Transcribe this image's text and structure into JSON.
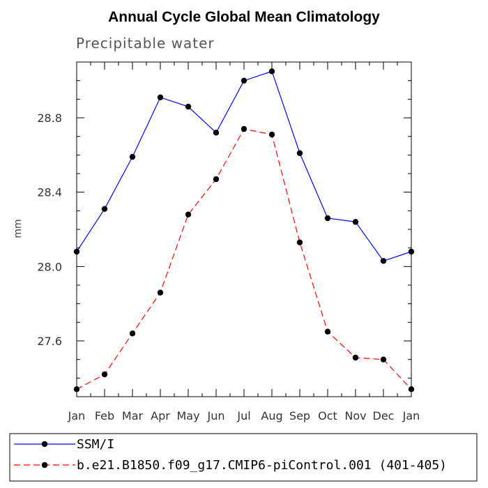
{
  "chart_data": {
    "type": "line",
    "title": "Annual Cycle Global Mean Climatology",
    "subtitle": "Precipitable water",
    "xlabel": "",
    "ylabel": "mm",
    "categories": [
      "Jan",
      "Feb",
      "Mar",
      "Apr",
      "May",
      "Jun",
      "Jul",
      "Aug",
      "Sep",
      "Oct",
      "Nov",
      "Dec",
      "Jan"
    ],
    "ylim": [
      27.3,
      29.1
    ],
    "yticks": [
      27.6,
      28.0,
      28.4,
      28.8
    ],
    "ytick_labels": [
      "27.6",
      "28.0",
      "28.4",
      "28.8"
    ],
    "series": [
      {
        "name": "SSM/I",
        "color": "#0000ff",
        "dash": "solid",
        "values": [
          28.08,
          28.31,
          28.59,
          28.91,
          28.86,
          28.72,
          29.0,
          29.05,
          28.61,
          28.26,
          28.24,
          28.03,
          28.08
        ]
      },
      {
        "name": "b.e21.B1850.f09_g17.CMIP6-piControl.001 (401-405)",
        "color": "#ff0000",
        "dash": "dashed",
        "values": [
          27.34,
          27.42,
          27.64,
          27.86,
          28.28,
          28.47,
          28.74,
          28.71,
          28.13,
          27.65,
          27.51,
          27.5,
          27.34
        ]
      }
    ]
  }
}
